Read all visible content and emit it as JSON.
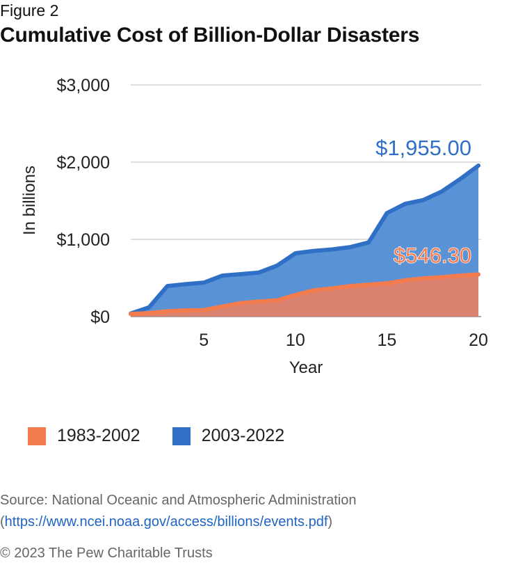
{
  "figure_label": "Figure 2",
  "title": "Cumulative Cost of Billion-Dollar Disasters",
  "source_prefix": "Source: National Oceanic and Atmospheric Administration (",
  "source_link": "https://www.ncei.noaa.gov/access/billions/events.pdf",
  "source_suffix": ")",
  "copyright": "© 2023 The Pew Charitable Trusts",
  "colors": {
    "series_1983_line": "#f37c4f",
    "series_1983_fill": "#e0826a",
    "series_2003_line": "#2f6fc6",
    "series_2003_fill": "#5a92d6",
    "gridline": "#cccccc"
  },
  "chart_data": {
    "type": "area",
    "xlabel": "Year",
    "ylabel": "In billions",
    "xlim": [
      1,
      20
    ],
    "ylim": [
      0,
      3000
    ],
    "x_ticks": [
      5,
      10,
      15,
      20
    ],
    "y_ticks": [
      0,
      1000,
      2000,
      3000
    ],
    "y_tick_labels": [
      "$0",
      "$1,000",
      "$2,000",
      "$3,000"
    ],
    "grid": true,
    "legend_position": "bottom",
    "x": [
      1,
      2,
      3,
      4,
      5,
      6,
      7,
      8,
      9,
      10,
      11,
      12,
      13,
      14,
      15,
      16,
      17,
      18,
      19,
      20
    ],
    "series": [
      {
        "name": "1983-2002",
        "values": [
          35,
          45,
          70,
          80,
          85,
          130,
          175,
          195,
          210,
          280,
          340,
          365,
          395,
          415,
          430,
          470,
          495,
          510,
          530,
          546.3
        ],
        "end_label": "$546.30"
      },
      {
        "name": "2003-2022",
        "values": [
          40,
          120,
          395,
          420,
          440,
          530,
          550,
          570,
          660,
          820,
          850,
          870,
          900,
          960,
          1340,
          1460,
          1510,
          1620,
          1780,
          1955
        ],
        "end_label": "$1,955.00"
      }
    ]
  }
}
